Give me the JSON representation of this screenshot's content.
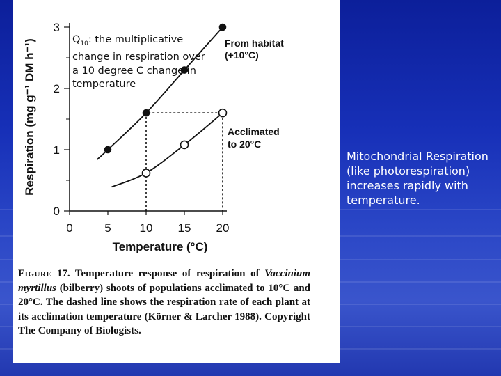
{
  "slide": {
    "side_text": "Mitochondrial Respiration (like photorespiration) increases rapidly with temperature.",
    "q10_note_prefix": "Q",
    "q10_note_sub": "10",
    "q10_note_rest": ": the multiplicative change in respiration over a 10 degree C change in temperature",
    "background_color": "#1a33b5"
  },
  "caption": {
    "figure_label": "Figure",
    "figure_number": "17.",
    "text_1": "Temperature response of respiration of",
    "species": "Vaccinium myrtillus",
    "text_2": "(bilberry) shoots of populations acclimated to 10°C and 20°C. The dashed line shows the respiration rate of each plant at its acclimation temperature (Körner & Larcher 1988). Copyright The Company of Biologists."
  },
  "chart_data": {
    "type": "line",
    "xlabel": "Temperature (°C)",
    "ylabel": "Respiration (mg g⁻¹ DM h⁻¹)",
    "xlim": [
      0,
      20
    ],
    "ylim": [
      0,
      3
    ],
    "x_ticks": [
      "0",
      "5",
      "10",
      "15",
      "20"
    ],
    "y_ticks": [
      "0",
      "1",
      "2",
      "3"
    ],
    "grid": false,
    "series": [
      {
        "name": "From habitat (+10°C)",
        "marker": "filled",
        "points": [
          [
            5,
            1.0
          ],
          [
            10,
            1.6
          ],
          [
            15,
            2.3
          ],
          [
            20,
            3.0
          ]
        ]
      },
      {
        "name": "Acclimated to 20°C",
        "marker": "open",
        "points": [
          [
            10,
            0.62
          ],
          [
            15,
            1.08
          ],
          [
            20,
            1.6
          ]
        ]
      }
    ],
    "dashed_line": [
      [
        10,
        0
      ],
      [
        10,
        1.6
      ],
      [
        20,
        1.6
      ],
      [
        20,
        0
      ]
    ]
  }
}
